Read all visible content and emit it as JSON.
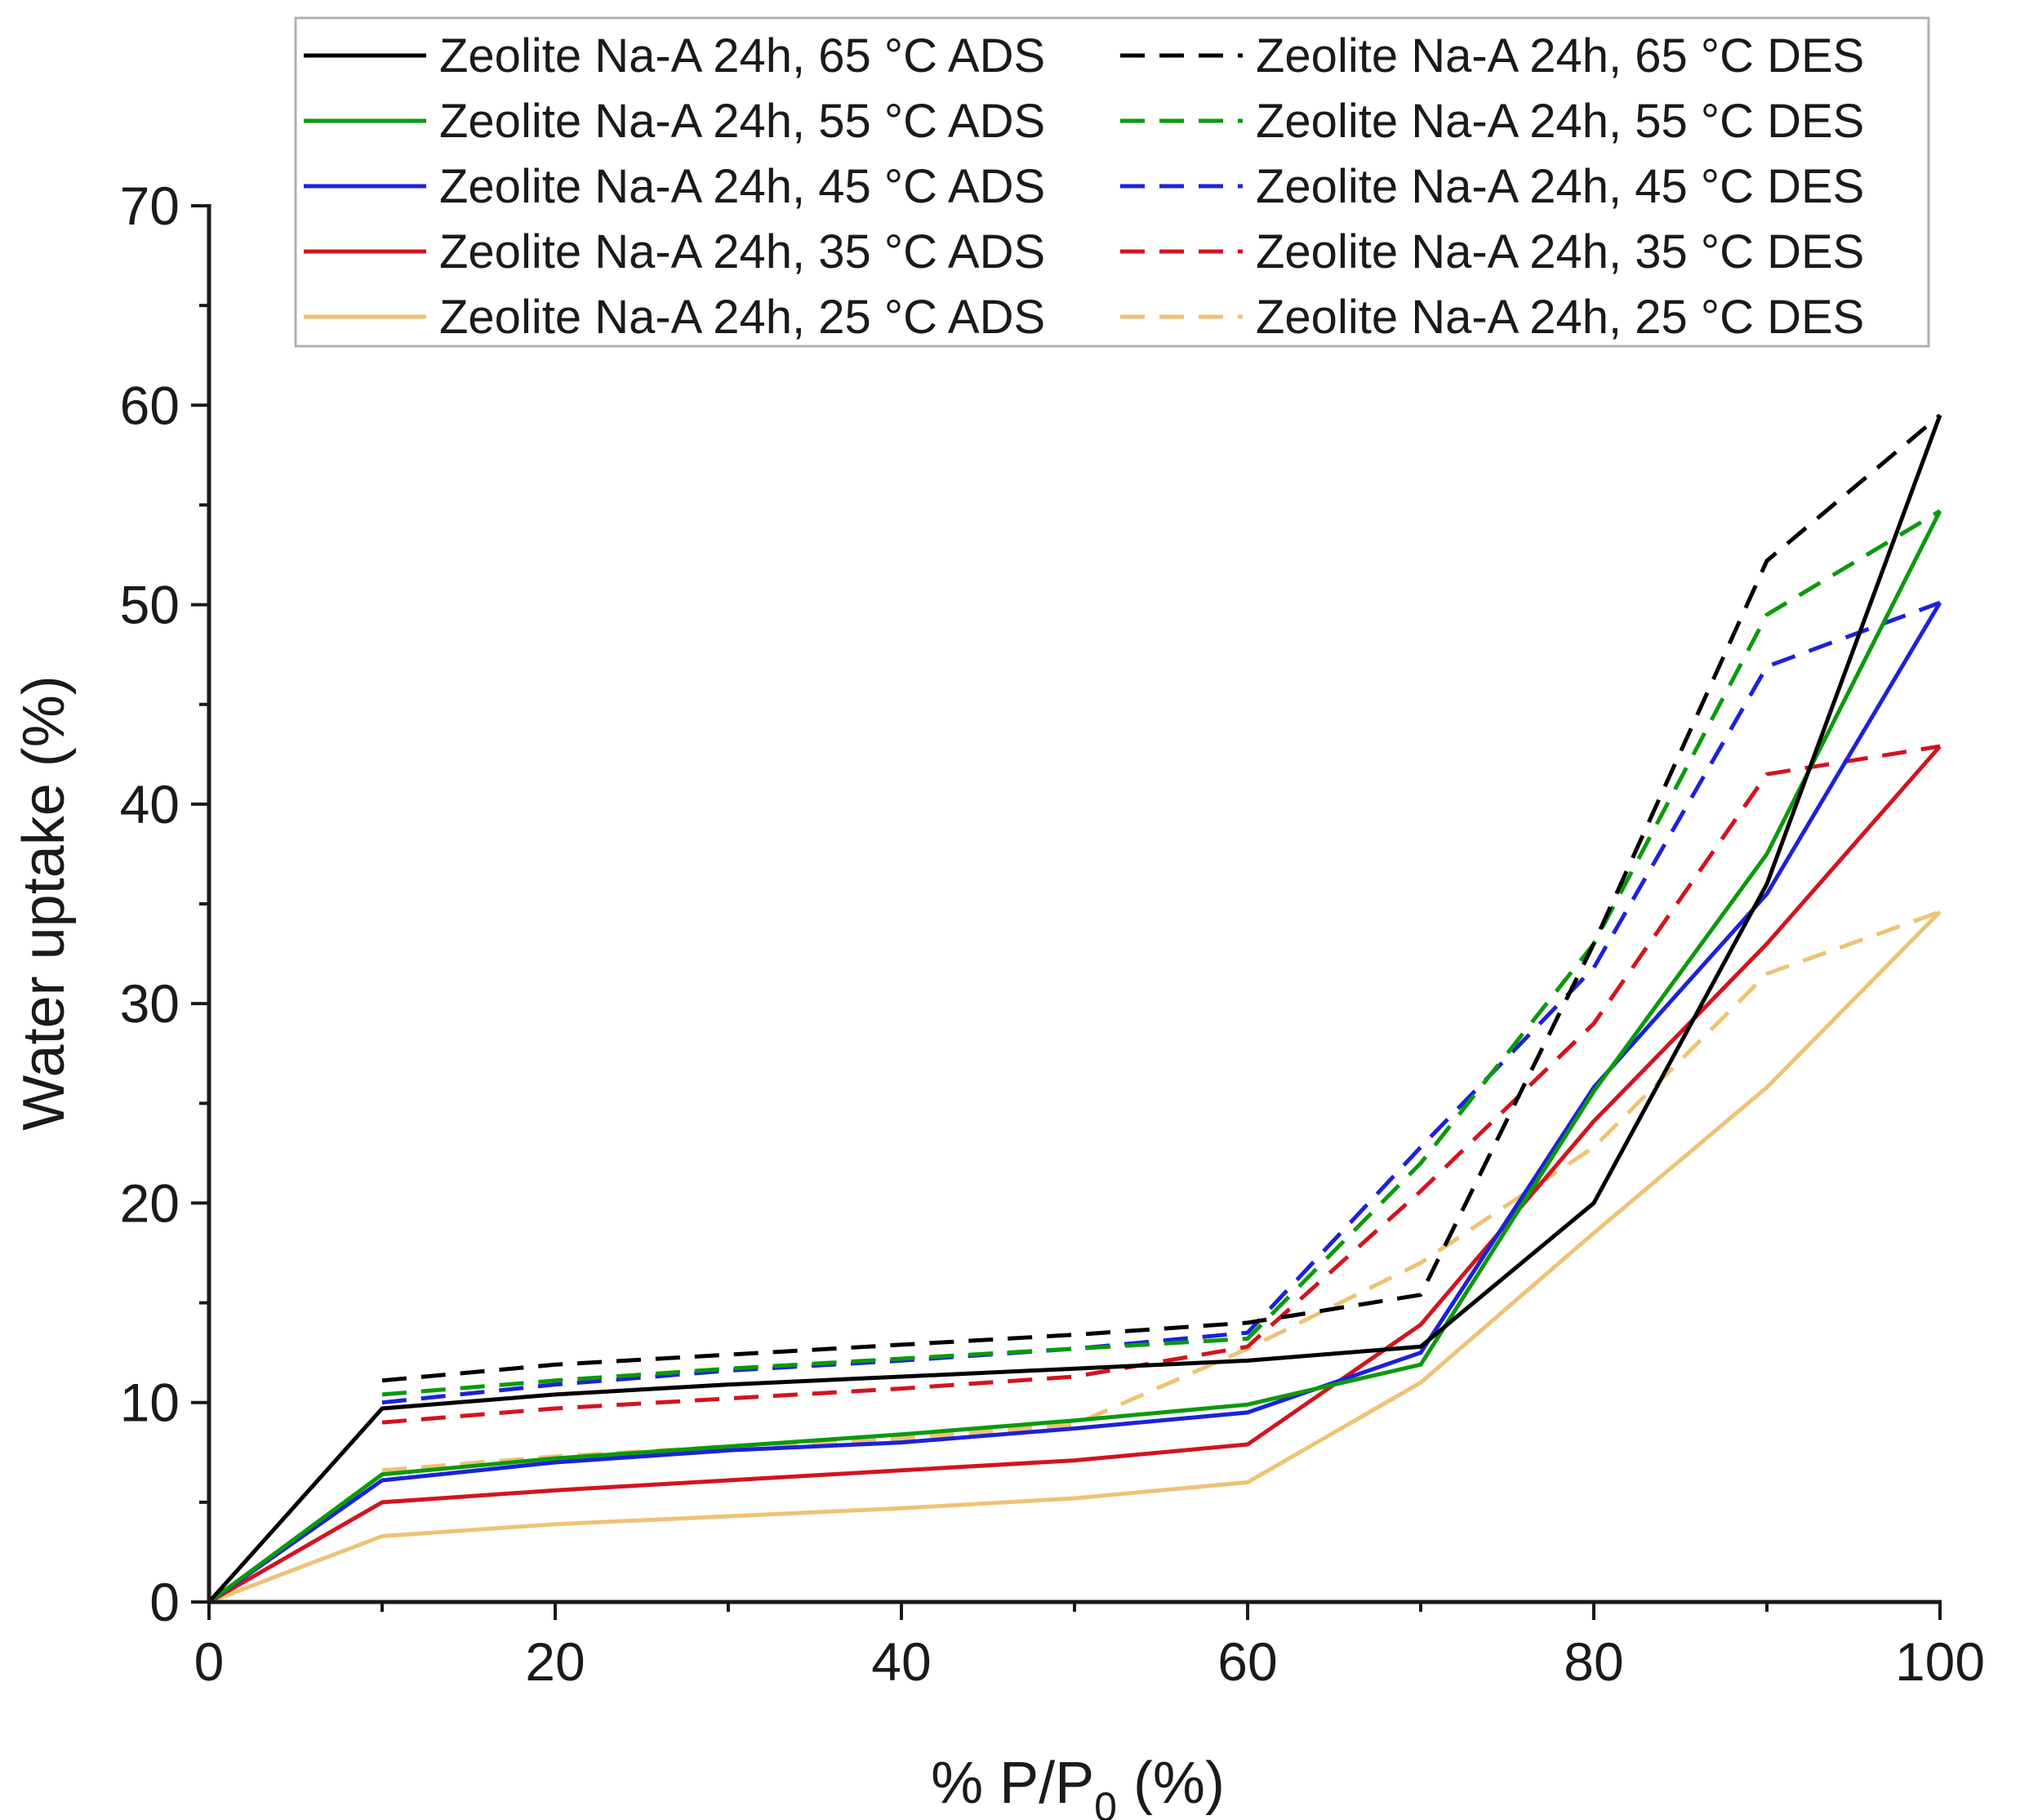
{
  "chart_data": {
    "type": "line",
    "title": "",
    "xlabel": "% P/P",
    "xlabel_subscript": "0",
    "xlabel_suffix": " (%)",
    "ylabel": "Water uptake (%)",
    "xlim": [
      0,
      100
    ],
    "ylim": [
      0,
      70
    ],
    "x_ticks": [
      0,
      20,
      40,
      60,
      80,
      100
    ],
    "y_ticks": [
      0,
      10,
      20,
      30,
      40,
      50,
      60,
      70
    ],
    "grid": false,
    "legend_position": "top",
    "x": [
      0,
      10,
      20,
      30,
      40,
      50,
      60,
      70,
      80,
      90,
      100
    ],
    "series": [
      {
        "name": "Zeolite Na-A 24h, 65 °C ADS",
        "color": "#000000",
        "style": "solid",
        "values": [
          0,
          9.7,
          10.4,
          10.9,
          11.3,
          11.7,
          12.1,
          12.8,
          20.0,
          36.0,
          59.5
        ]
      },
      {
        "name": "Zeolite Na-A 24h, 65 °C DES",
        "color": "#000000",
        "style": "dashed",
        "values": [
          null,
          11.1,
          11.9,
          12.4,
          12.9,
          13.4,
          14.0,
          15.4,
          33.0,
          52.2,
          59.5
        ]
      },
      {
        "name": "Zeolite Na-A 24h, 55 °C ADS",
        "color": "#0a9a0a",
        "style": "solid",
        "values": [
          0,
          6.4,
          7.2,
          7.8,
          8.4,
          9.1,
          9.9,
          11.9,
          25.6,
          37.5,
          54.7
        ]
      },
      {
        "name": "Zeolite Na-A 24h, 55 °C DES",
        "color": "#0a9a0a",
        "style": "dashed",
        "values": [
          null,
          10.4,
          11.1,
          11.7,
          12.2,
          12.7,
          13.2,
          22.0,
          33.0,
          49.5,
          54.7
        ]
      },
      {
        "name": "Zeolite Na-A 24h, 45 °C ADS",
        "color": "#1c22d8",
        "style": "solid",
        "values": [
          0,
          6.1,
          7.0,
          7.6,
          8.0,
          8.7,
          9.5,
          12.5,
          25.8,
          35.5,
          50.1
        ]
      },
      {
        "name": "Zeolite Na-A 24h, 45 °C DES",
        "color": "#1c22d8",
        "style": "dashed",
        "values": [
          null,
          10.0,
          10.9,
          11.6,
          12.1,
          12.7,
          13.5,
          22.8,
          31.8,
          46.9,
          50.1
        ]
      },
      {
        "name": "Zeolite Na-A 24h, 35 °C ADS",
        "color": "#d2141e",
        "style": "solid",
        "values": [
          0,
          5.0,
          5.6,
          6.1,
          6.6,
          7.1,
          7.9,
          13.9,
          24.1,
          33.0,
          42.9
        ]
      },
      {
        "name": "Zeolite Na-A 24h, 35 °C DES",
        "color": "#d2141e",
        "style": "dashed",
        "values": [
          null,
          9.0,
          9.7,
          10.2,
          10.7,
          11.3,
          12.8,
          20.6,
          29.0,
          41.5,
          42.9
        ]
      },
      {
        "name": "Zeolite Na-A 24h, 25 °C ADS",
        "color": "#eec276",
        "style": "solid",
        "values": [
          0,
          3.3,
          3.9,
          4.3,
          4.7,
          5.2,
          6.0,
          11.0,
          18.5,
          25.8,
          34.6
        ]
      },
      {
        "name": "Zeolite Na-A 24h, 25 °C DES",
        "color": "#eec276",
        "style": "dashed",
        "values": [
          null,
          6.6,
          7.3,
          7.8,
          8.2,
          8.9,
          12.7,
          17.0,
          22.8,
          31.5,
          34.6
        ]
      }
    ]
  }
}
